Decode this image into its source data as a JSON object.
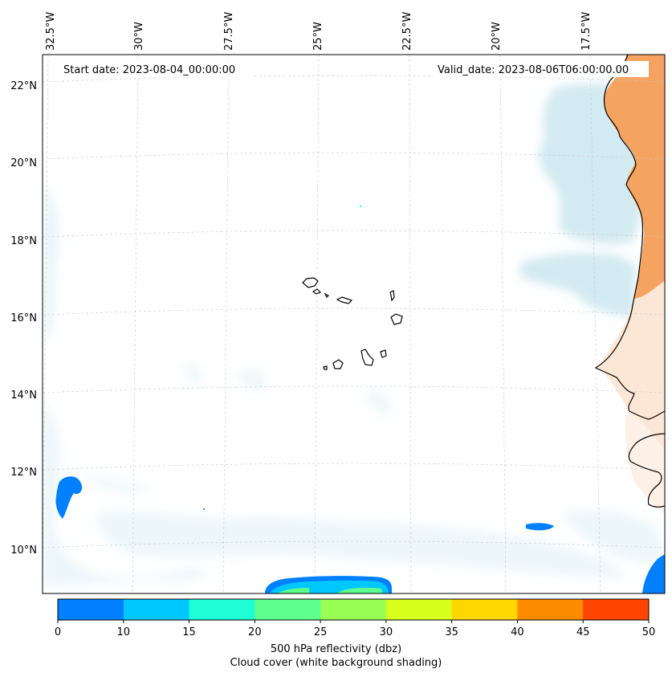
{
  "map": {
    "start_date_label": "Start date: 2023-08-04_00:00:00",
    "valid_date_label": "Valid_date: 2023-08-06T06:00:00.00",
    "lon_labels": [
      "32.5°W",
      "30°W",
      "27.5°W",
      "25°W",
      "22.5°W",
      "20°W",
      "17.5°W"
    ],
    "lat_labels": [
      "22°N",
      "20°N",
      "18°N",
      "16°N",
      "14°N",
      "12°N",
      "10°N"
    ],
    "colors": {
      "cloud": "#add8e6",
      "land_warm": "#f4a460",
      "land_light": "#fbe3cf",
      "coastline": "#000000",
      "grid": "#bbbbbb"
    }
  },
  "colorbar": {
    "ticks": [
      "0",
      "10",
      "15",
      "20",
      "25",
      "30",
      "35",
      "40",
      "45",
      "50"
    ],
    "colors": [
      "#0080ff",
      "#00c8ff",
      "#1effd6",
      "#5dff8d",
      "#9aff55",
      "#d8ff1e",
      "#ffd700",
      "#ff8c00",
      "#ff4500"
    ],
    "label": "500 hPa reflectivity (dbz)",
    "sublabel": "Cloud cover (white background shading)"
  }
}
